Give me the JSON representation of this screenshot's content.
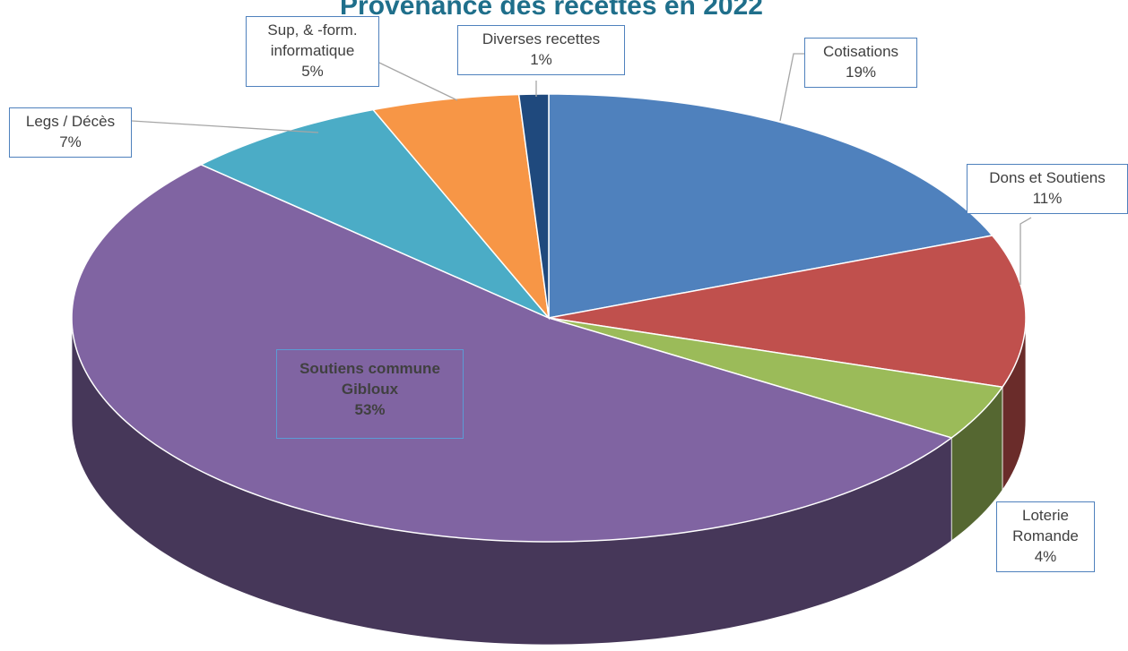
{
  "chart_data": {
    "type": "pie",
    "title": "Provenance des recettes en 2022",
    "categories": [
      "Cotisations",
      "Dons et Soutiens",
      "Loterie Romande",
      "Soutiens commune Gibloux",
      "Legs / Décès",
      "Sup, & -form. informatique",
      "Diverses recettes"
    ],
    "values": [
      19,
      11,
      4,
      53,
      7,
      5,
      1
    ],
    "value_labels": [
      "19%",
      "11%",
      "4%",
      "53%",
      "7%",
      "5%",
      "1%"
    ],
    "colors": [
      "#4f81bd",
      "#c0504d",
      "#9bbb59",
      "#8064a2",
      "#4bacc6",
      "#f79646",
      "#1f497d"
    ]
  }
}
